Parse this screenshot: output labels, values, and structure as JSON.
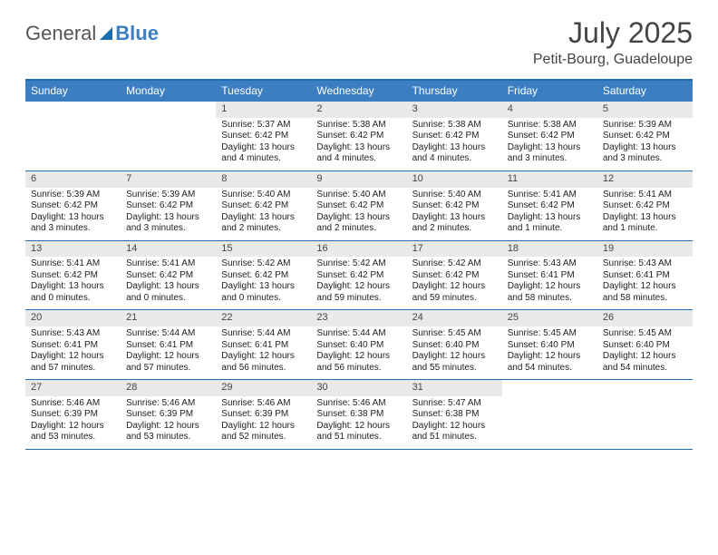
{
  "logo": {
    "word1": "General",
    "word2": "Blue"
  },
  "title": "July 2025",
  "location": "Petit-Bourg, Guadeloupe",
  "colors": {
    "header_bar": "#3b7ec1",
    "rule": "#1f6db1",
    "daynum_bg": "#e9e9e9",
    "text": "#222222",
    "logo_gray": "#555555"
  },
  "day_names": [
    "Sunday",
    "Monday",
    "Tuesday",
    "Wednesday",
    "Thursday",
    "Friday",
    "Saturday"
  ],
  "weeks": [
    [
      {
        "blank": true
      },
      {
        "blank": true
      },
      {
        "n": "1",
        "sr": "5:37 AM",
        "ss": "6:42 PM",
        "dl": "13 hours and 4 minutes."
      },
      {
        "n": "2",
        "sr": "5:38 AM",
        "ss": "6:42 PM",
        "dl": "13 hours and 4 minutes."
      },
      {
        "n": "3",
        "sr": "5:38 AM",
        "ss": "6:42 PM",
        "dl": "13 hours and 4 minutes."
      },
      {
        "n": "4",
        "sr": "5:38 AM",
        "ss": "6:42 PM",
        "dl": "13 hours and 3 minutes."
      },
      {
        "n": "5",
        "sr": "5:39 AM",
        "ss": "6:42 PM",
        "dl": "13 hours and 3 minutes."
      }
    ],
    [
      {
        "n": "6",
        "sr": "5:39 AM",
        "ss": "6:42 PM",
        "dl": "13 hours and 3 minutes."
      },
      {
        "n": "7",
        "sr": "5:39 AM",
        "ss": "6:42 PM",
        "dl": "13 hours and 3 minutes."
      },
      {
        "n": "8",
        "sr": "5:40 AM",
        "ss": "6:42 PM",
        "dl": "13 hours and 2 minutes."
      },
      {
        "n": "9",
        "sr": "5:40 AM",
        "ss": "6:42 PM",
        "dl": "13 hours and 2 minutes."
      },
      {
        "n": "10",
        "sr": "5:40 AM",
        "ss": "6:42 PM",
        "dl": "13 hours and 2 minutes."
      },
      {
        "n": "11",
        "sr": "5:41 AM",
        "ss": "6:42 PM",
        "dl": "13 hours and 1 minute."
      },
      {
        "n": "12",
        "sr": "5:41 AM",
        "ss": "6:42 PM",
        "dl": "13 hours and 1 minute."
      }
    ],
    [
      {
        "n": "13",
        "sr": "5:41 AM",
        "ss": "6:42 PM",
        "dl": "13 hours and 0 minutes."
      },
      {
        "n": "14",
        "sr": "5:41 AM",
        "ss": "6:42 PM",
        "dl": "13 hours and 0 minutes."
      },
      {
        "n": "15",
        "sr": "5:42 AM",
        "ss": "6:42 PM",
        "dl": "13 hours and 0 minutes."
      },
      {
        "n": "16",
        "sr": "5:42 AM",
        "ss": "6:42 PM",
        "dl": "12 hours and 59 minutes."
      },
      {
        "n": "17",
        "sr": "5:42 AM",
        "ss": "6:42 PM",
        "dl": "12 hours and 59 minutes."
      },
      {
        "n": "18",
        "sr": "5:43 AM",
        "ss": "6:41 PM",
        "dl": "12 hours and 58 minutes."
      },
      {
        "n": "19",
        "sr": "5:43 AM",
        "ss": "6:41 PM",
        "dl": "12 hours and 58 minutes."
      }
    ],
    [
      {
        "n": "20",
        "sr": "5:43 AM",
        "ss": "6:41 PM",
        "dl": "12 hours and 57 minutes."
      },
      {
        "n": "21",
        "sr": "5:44 AM",
        "ss": "6:41 PM",
        "dl": "12 hours and 57 minutes."
      },
      {
        "n": "22",
        "sr": "5:44 AM",
        "ss": "6:41 PM",
        "dl": "12 hours and 56 minutes."
      },
      {
        "n": "23",
        "sr": "5:44 AM",
        "ss": "6:40 PM",
        "dl": "12 hours and 56 minutes."
      },
      {
        "n": "24",
        "sr": "5:45 AM",
        "ss": "6:40 PM",
        "dl": "12 hours and 55 minutes."
      },
      {
        "n": "25",
        "sr": "5:45 AM",
        "ss": "6:40 PM",
        "dl": "12 hours and 54 minutes."
      },
      {
        "n": "26",
        "sr": "5:45 AM",
        "ss": "6:40 PM",
        "dl": "12 hours and 54 minutes."
      }
    ],
    [
      {
        "n": "27",
        "sr": "5:46 AM",
        "ss": "6:39 PM",
        "dl": "12 hours and 53 minutes."
      },
      {
        "n": "28",
        "sr": "5:46 AM",
        "ss": "6:39 PM",
        "dl": "12 hours and 53 minutes."
      },
      {
        "n": "29",
        "sr": "5:46 AM",
        "ss": "6:39 PM",
        "dl": "12 hours and 52 minutes."
      },
      {
        "n": "30",
        "sr": "5:46 AM",
        "ss": "6:38 PM",
        "dl": "12 hours and 51 minutes."
      },
      {
        "n": "31",
        "sr": "5:47 AM",
        "ss": "6:38 PM",
        "dl": "12 hours and 51 minutes."
      },
      {
        "blank": true
      },
      {
        "blank": true
      }
    ]
  ],
  "labels": {
    "sunrise": "Sunrise:",
    "sunset": "Sunset:",
    "daylight": "Daylight:"
  }
}
